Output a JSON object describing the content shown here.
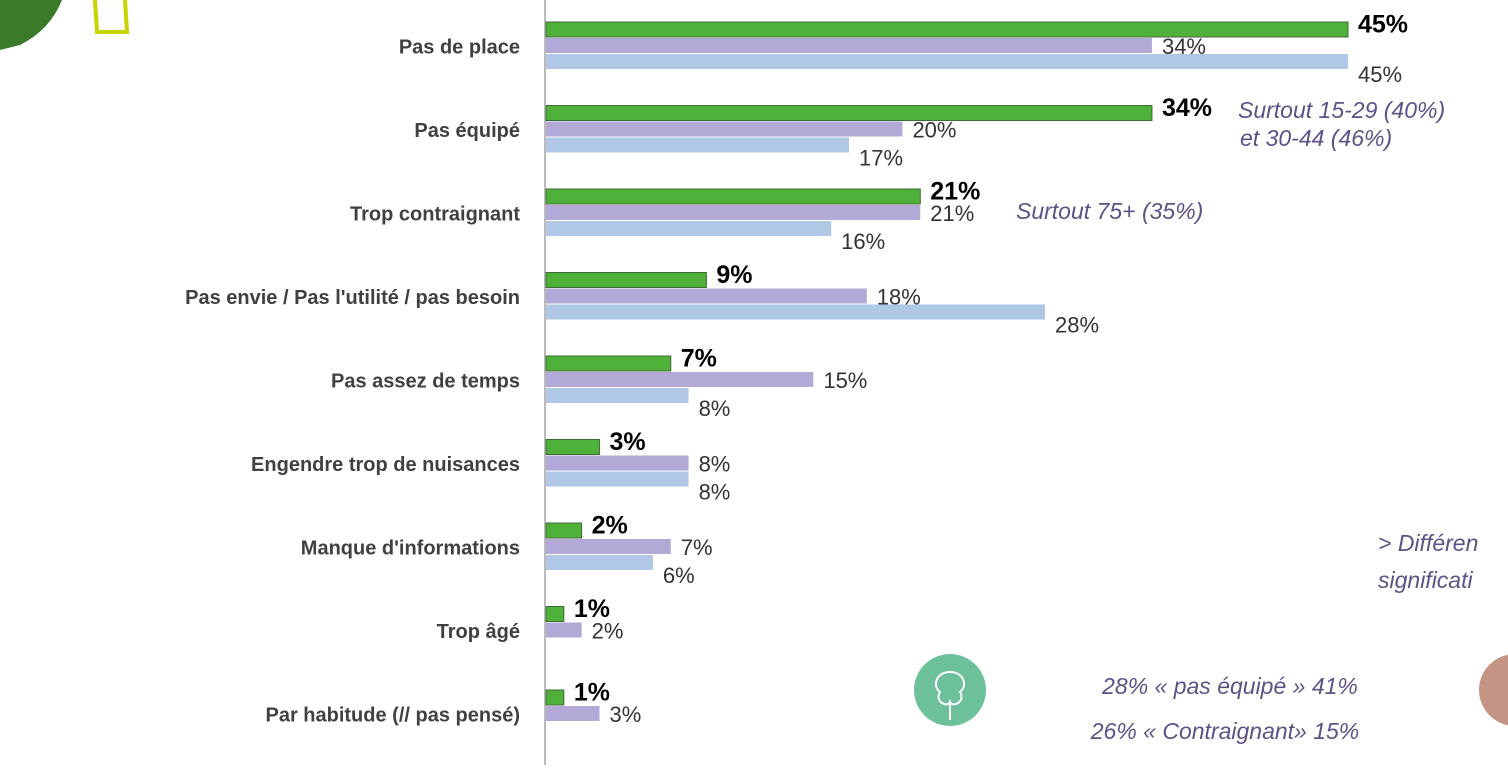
{
  "chart_data": {
    "type": "hbar",
    "categories": [
      "Pas de place",
      "Pas équipé",
      "Trop contraignant",
      "Pas envie / Pas l'utilité / pas besoin",
      "Pas assez de temps",
      "Engendre trop de nuisances",
      "Manque d'informations",
      "Trop âgé",
      "Par habitude (// pas pensé)"
    ],
    "series": [
      {
        "color": "#4fb13a",
        "values": [
          45,
          34,
          21,
          9,
          7,
          3,
          2,
          1,
          1
        ],
        "value_labels": [
          "45%",
          "34%",
          "21%",
          "9%",
          "7%",
          "3%",
          "2%",
          "1%",
          "1%"
        ]
      },
      {
        "color": "#b3a9d6",
        "values": [
          34,
          20,
          21,
          18,
          15,
          8,
          7,
          2,
          3
        ],
        "value_labels": [
          "34%",
          "20%",
          "21%",
          "18%",
          "15%",
          "8%",
          "7%",
          "2%",
          "3%"
        ]
      },
      {
        "color": "#b0c8e6",
        "values": [
          45,
          17,
          16,
          28,
          8,
          8,
          6,
          null,
          null
        ],
        "value_labels": [
          "45%",
          "17%",
          "16%",
          "28%",
          "8%",
          "8%",
          "6%",
          null,
          null
        ]
      }
    ],
    "xlim": [
      0,
      45
    ],
    "annotations": [
      "Surtout 15-29 (40%)",
      "et 30-44 (46%)",
      "Surtout 75+ (35%)",
      "> Différen",
      "significati",
      "28% « pas équipé » 41%",
      "26% « Contraignant» 15%"
    ]
  }
}
